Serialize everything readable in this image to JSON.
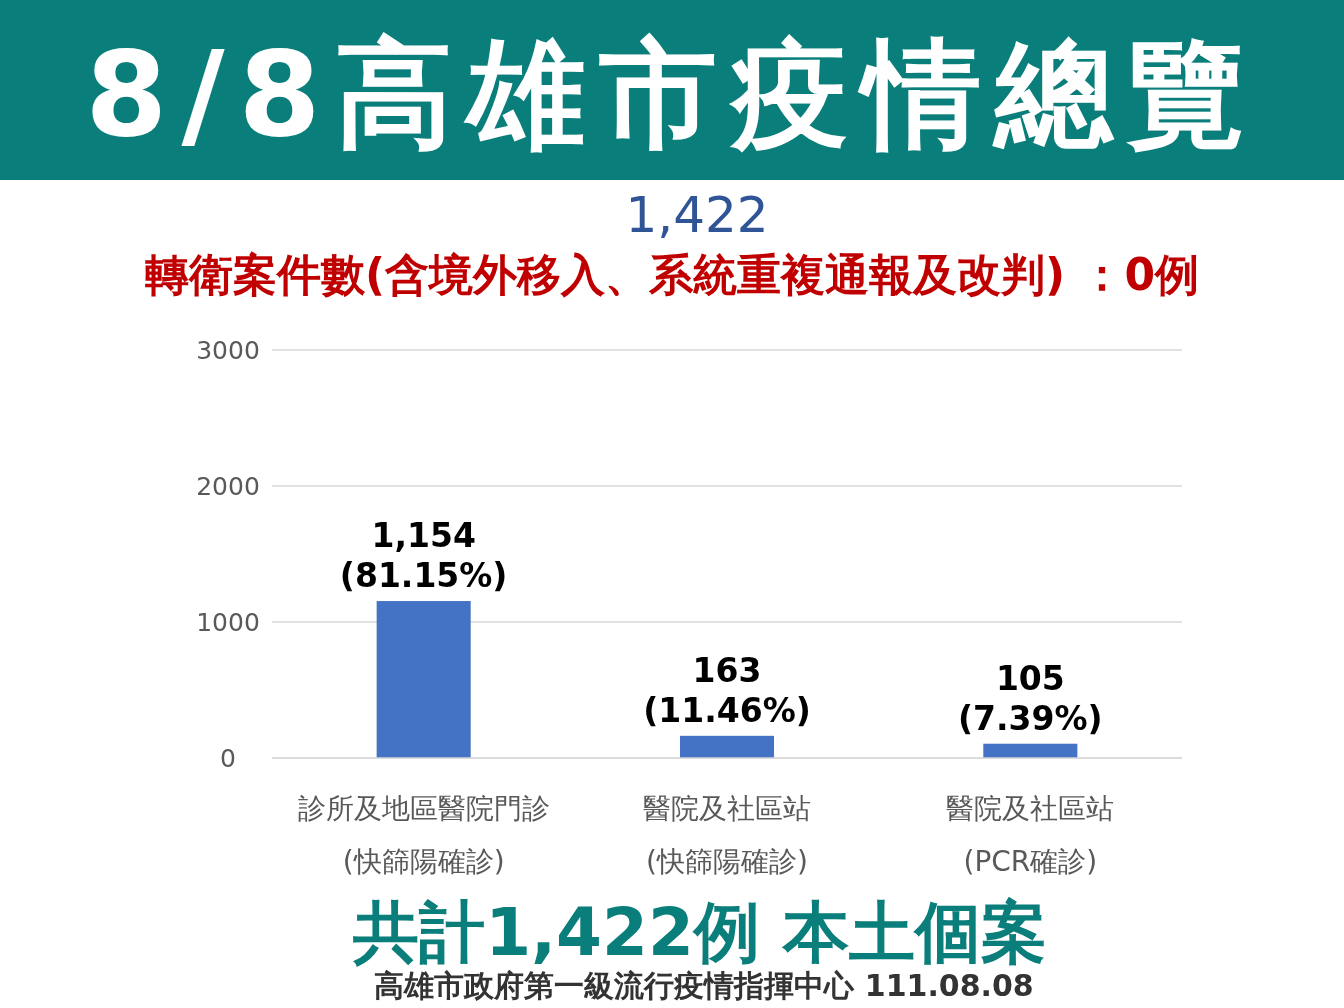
{
  "chart_data": {
    "type": "bar",
    "title": "8/8高雄市疫情總覽",
    "categories": [
      "診所及地區醫院門診\n(快篩陽確診)",
      "醫院及社區站\n(快篩陽確診)",
      "醫院及社區站\n(PCR確診)"
    ],
    "values": [
      1154,
      163,
      105
    ],
    "value_labels": [
      "1,154\n(81.15%)",
      "163\n(11.46%)",
      "105\n(7.39%)"
    ],
    "color": "#4472c4",
    "ylim": [
      0,
      3000
    ],
    "yticks": [
      0,
      1000,
      2000,
      3000
    ],
    "grid": "y",
    "annotations": [
      "1,422",
      "轉衛案件數(含境外移入、系統重複通報及改判) ：0例",
      "共計1,422例 本土個案",
      "高雄市政府第一級流行疫情指揮中心 111.08.08"
    ]
  }
}
